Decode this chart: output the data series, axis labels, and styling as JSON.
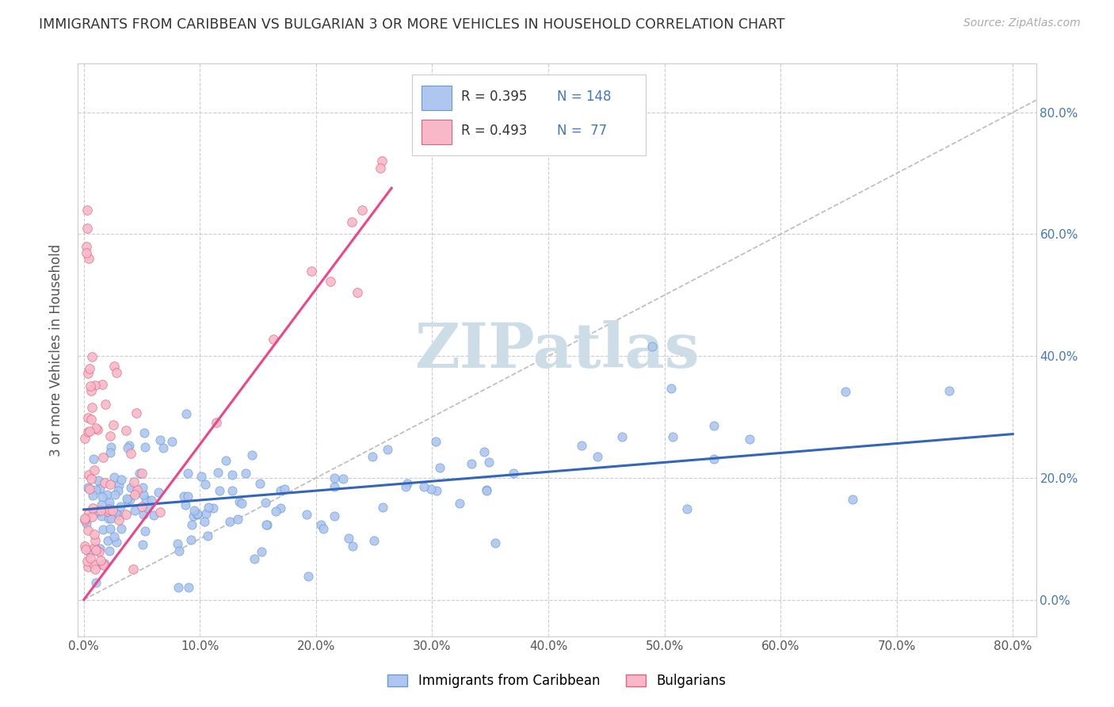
{
  "title": "IMMIGRANTS FROM CARIBBEAN VS BULGARIAN 3 OR MORE VEHICLES IN HOUSEHOLD CORRELATION CHART",
  "source": "Source: ZipAtlas.com",
  "ylabel": "3 or more Vehicles in Household",
  "series": [
    {
      "name": "Immigrants from Caribbean",
      "color": "#aec6f0",
      "edge_color": "#6699cc",
      "R": 0.395,
      "N": 148,
      "trend_color": "#3366bb",
      "trend_intercept": 0.148,
      "trend_slope": 0.155
    },
    {
      "name": "Bulgarians",
      "color": "#f8b8c8",
      "edge_color": "#e06080",
      "R": 0.493,
      "N": 77,
      "trend_color": "#ee4488",
      "trend_intercept": 0.0,
      "trend_slope": 2.55
    }
  ],
  "xlim": [
    -0.005,
    0.82
  ],
  "ylim": [
    -0.06,
    0.88
  ],
  "xticks": [
    0.0,
    0.1,
    0.2,
    0.3,
    0.4,
    0.5,
    0.6,
    0.7,
    0.8
  ],
  "yticks": [
    0.0,
    0.2,
    0.4,
    0.6,
    0.8
  ],
  "grid_color": "#cccccc",
  "background_color": "#ffffff",
  "watermark": "ZIPatlas",
  "watermark_color": "#ccdde8",
  "diagonal_line_color": "#bbbbbb",
  "blue_trend_x": [
    0.0,
    0.8
  ],
  "pink_trend_x": [
    0.0,
    0.265
  ]
}
